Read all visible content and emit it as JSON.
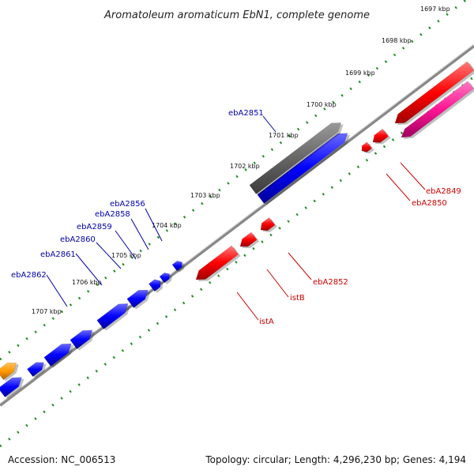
{
  "title": "Aromatoleum aromaticum EbN1, complete genome",
  "footer": {
    "accession": "Accession: NC_006513",
    "summary": "Topology: circular; Length: 4,296,230 bp; Genes: 4,194"
  },
  "colors": {
    "forward_gene": "#0000ff",
    "reverse_gene": "#ff0000",
    "rna_gene": "#ff1493",
    "pseudo_gene": "#666666",
    "other_gene": "#ff9900",
    "backbone": "#888888",
    "ruler": "#228b22",
    "forward_label": "#0000aa",
    "reverse_label": "#cc0000"
  },
  "ruler_labels": [
    "1697 kbp",
    "1698 kbp",
    "1699 kbp",
    "1700 kbp",
    "1701 kbp",
    "1702 kbp",
    "1703 kbp",
    "1704 kbp",
    "1705 kbp",
    "1706 kbp",
    "1707 kbp"
  ],
  "forward_labels": [
    "ebA2851",
    "ebA2856",
    "ebA2858",
    "ebA2859",
    "ebA2860",
    "ebA2861",
    "ebA2862"
  ],
  "reverse_labels": [
    "ebA2849",
    "ebA2850",
    "ebA2852",
    "istB",
    "istA"
  ]
}
